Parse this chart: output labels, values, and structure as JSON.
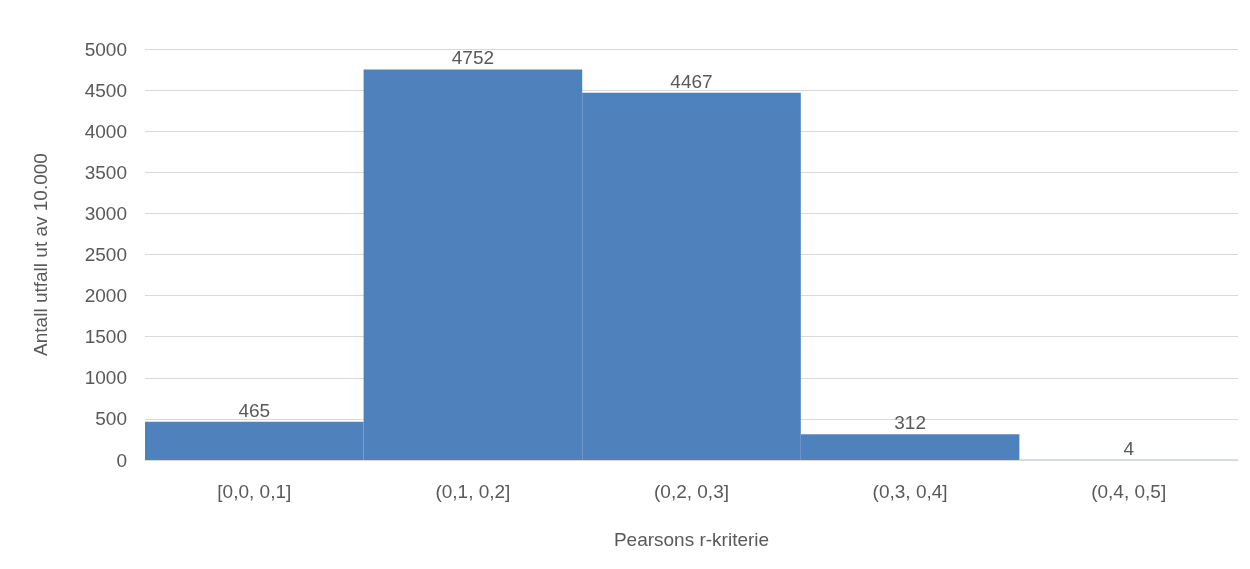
{
  "chart_data": {
    "type": "bar",
    "xlabel": "Pearsons r-kriterie",
    "ylabel": "Antall utfall ut av 10.000",
    "categories": [
      "[0,0, 0,1]",
      "(0,1, 0,2]",
      "(0,2, 0,3]",
      "(0,3, 0,4]",
      "(0,4, 0,5]"
    ],
    "values": [
      465,
      4752,
      4467,
      312,
      4
    ],
    "color": "#4f81bd",
    "ylim": [
      0,
      5000
    ],
    "yticks": [
      0,
      500,
      1000,
      1500,
      2000,
      2500,
      3000,
      3500,
      4000,
      4500,
      5000
    ],
    "grid": "y",
    "data_labels": true
  }
}
